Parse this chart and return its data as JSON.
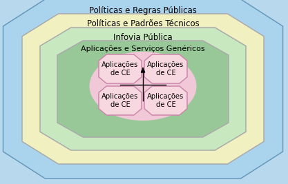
{
  "layers": [
    {
      "label": "Políticas e Regras Públicas",
      "color": "#aad4ee",
      "edge_color": "#6699bb"
    },
    {
      "label": "Políticas e Padrões Técnicos",
      "color": "#f0f0c0",
      "edge_color": "#aaaaaa"
    },
    {
      "label": "Infovia Pública",
      "color": "#c8e8c0",
      "edge_color": "#aaaaaa"
    },
    {
      "label": "Aplicações e Serviços Genéricos",
      "color": "#98c898",
      "edge_color": "#aaaaaa"
    }
  ],
  "box_label": "Aplicações\nde CE",
  "box_color": "#f8d8e0",
  "box_edge_color": "#cc88aa",
  "center_color": "#f0c8d8",
  "bg_color": "#b8d8ee",
  "fig_bg": "#b8d8ee",
  "figsize": [
    4.17,
    2.67
  ],
  "dpi": 100
}
